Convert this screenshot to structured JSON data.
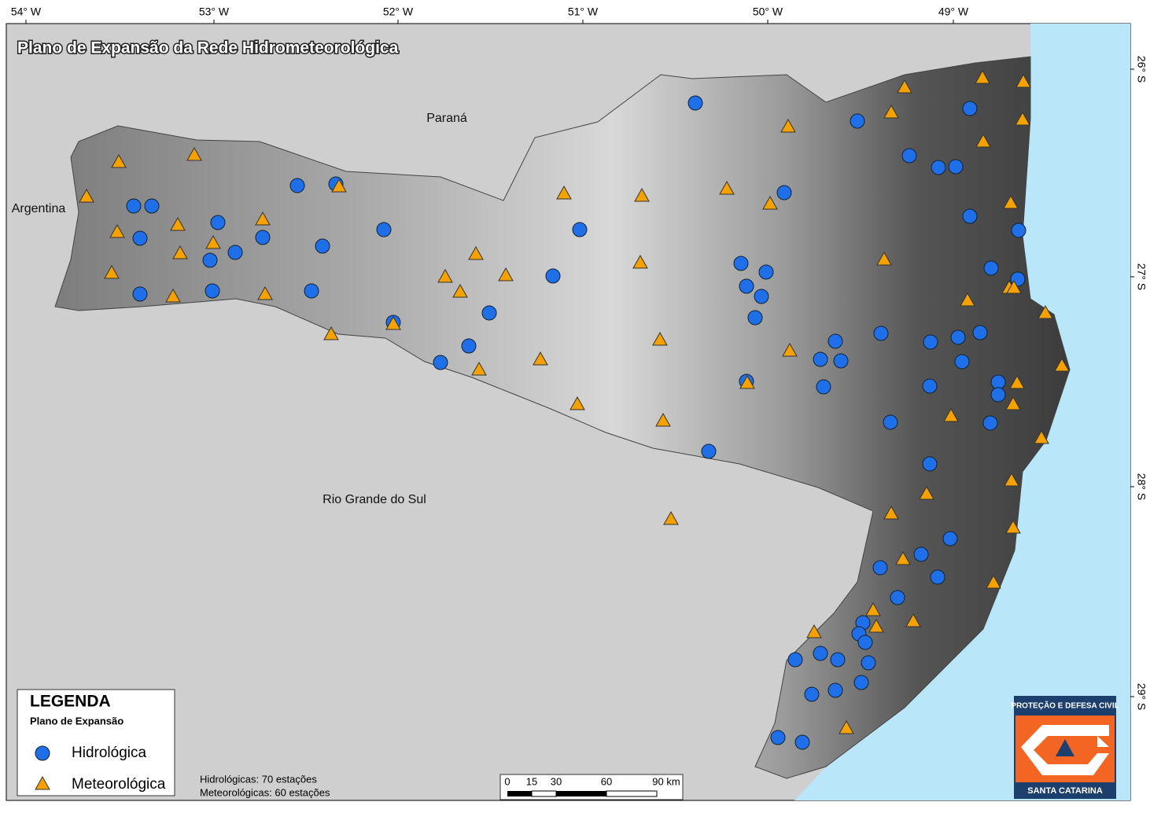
{
  "title": "Plano de Expansão da Rede Hidrometeorológica",
  "longitude_labels": [
    "54° W",
    "53° W",
    "52° W",
    "51° W",
    "50° W",
    "49° W"
  ],
  "latitude_labels": [
    "26° S",
    "27° S",
    "28° S",
    "29° S"
  ],
  "regions": {
    "parana": "Paraná",
    "argentina": "Argentina",
    "rio_grande_do_sul": "Rio Grande do Sul"
  },
  "legend": {
    "title": "LEGENDA",
    "subtitle": "Plano de Expansão",
    "items": [
      "Hidrológica",
      "Meteorológica"
    ]
  },
  "summary": [
    "Hidrológicas: 70 estações",
    "Meteorológicas: 60 estações"
  ],
  "scale_bar": [
    "0",
    "15",
    "30",
    "60",
    "90 km"
  ],
  "logo": {
    "top": "PROTEÇÃO E DEFESA CIVIL",
    "bottom": "SANTA CATARINA"
  }
}
